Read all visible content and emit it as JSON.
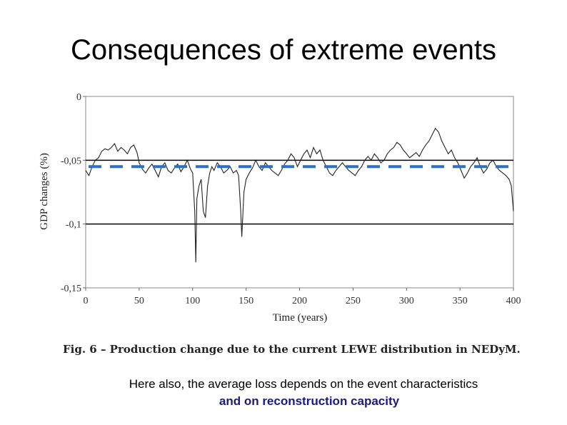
{
  "title": "Consequences of extreme events",
  "caption": "Fig. 6 – Production change due to the current LEWE distribution in NEDyM.",
  "note_line1": "Here also, the average loss depends on the event characteristics",
  "note_line2": "and on reconstruction capacity",
  "colors": {
    "note_line2": "#1a1a80",
    "dashed_mean": "#2c6fc7",
    "series": "#222222"
  },
  "chart_data": {
    "type": "line",
    "xlabel": "Time (years)",
    "ylabel": "GDP changes (%)",
    "xlim": [
      0,
      400
    ],
    "ylim": [
      -0.15,
      0
    ],
    "xticks": [
      0,
      50,
      100,
      150,
      200,
      250,
      300,
      350,
      400
    ],
    "xtick_labels": [
      "0",
      "50",
      "100",
      "150",
      "200",
      "250",
      "300",
      "350",
      "400"
    ],
    "yticks": [
      0,
      -0.05,
      -0.1,
      -0.15
    ],
    "ytick_labels": [
      "0",
      "-0,05",
      "-0,1",
      "-0,15"
    ],
    "reference_lines": [
      -0.05,
      -0.1
    ],
    "mean_line": -0.055,
    "series": [
      {
        "name": "GDP changes",
        "x": [
          0,
          3,
          6,
          9,
          12,
          15,
          18,
          21,
          24,
          27,
          30,
          33,
          36,
          39,
          42,
          45,
          48,
          50,
          53,
          56,
          59,
          62,
          65,
          68,
          71,
          74,
          77,
          80,
          83,
          86,
          89,
          92,
          95,
          98,
          100,
          102,
          103,
          104,
          106,
          108,
          110,
          112,
          114,
          116,
          118,
          120,
          123,
          126,
          129,
          132,
          135,
          138,
          141,
          143,
          145,
          146,
          148,
          150,
          153,
          156,
          159,
          162,
          165,
          168,
          171,
          174,
          177,
          180,
          183,
          186,
          189,
          192,
          195,
          198,
          201,
          204,
          207,
          210,
          213,
          216,
          219,
          222,
          225,
          228,
          231,
          234,
          237,
          240,
          243,
          246,
          249,
          252,
          255,
          258,
          261,
          264,
          267,
          270,
          273,
          276,
          279,
          282,
          285,
          288,
          291,
          294,
          297,
          300,
          303,
          306,
          309,
          312,
          315,
          318,
          321,
          324,
          327,
          330,
          333,
          336,
          339,
          342,
          345,
          348,
          351,
          354,
          357,
          360,
          363,
          366,
          369,
          372,
          375,
          378,
          381,
          384,
          387,
          390,
          393,
          396,
          398,
          400
        ],
        "y": [
          -0.058,
          -0.062,
          -0.055,
          -0.05,
          -0.048,
          -0.043,
          -0.041,
          -0.042,
          -0.04,
          -0.037,
          -0.043,
          -0.04,
          -0.042,
          -0.045,
          -0.04,
          -0.038,
          -0.044,
          -0.052,
          -0.057,
          -0.06,
          -0.056,
          -0.053,
          -0.058,
          -0.063,
          -0.055,
          -0.052,
          -0.058,
          -0.06,
          -0.056,
          -0.053,
          -0.059,
          -0.055,
          -0.05,
          -0.057,
          -0.06,
          -0.09,
          -0.13,
          -0.08,
          -0.07,
          -0.065,
          -0.09,
          -0.095,
          -0.07,
          -0.06,
          -0.055,
          -0.058,
          -0.052,
          -0.055,
          -0.06,
          -0.058,
          -0.055,
          -0.06,
          -0.058,
          -0.062,
          -0.09,
          -0.11,
          -0.075,
          -0.065,
          -0.06,
          -0.056,
          -0.05,
          -0.055,
          -0.058,
          -0.052,
          -0.055,
          -0.058,
          -0.06,
          -0.062,
          -0.058,
          -0.053,
          -0.05,
          -0.045,
          -0.048,
          -0.055,
          -0.05,
          -0.045,
          -0.042,
          -0.048,
          -0.04,
          -0.045,
          -0.042,
          -0.05,
          -0.055,
          -0.06,
          -0.062,
          -0.058,
          -0.055,
          -0.052,
          -0.055,
          -0.058,
          -0.06,
          -0.062,
          -0.058,
          -0.055,
          -0.05,
          -0.047,
          -0.05,
          -0.045,
          -0.048,
          -0.052,
          -0.05,
          -0.045,
          -0.042,
          -0.04,
          -0.036,
          -0.038,
          -0.042,
          -0.045,
          -0.048,
          -0.046,
          -0.044,
          -0.047,
          -0.042,
          -0.038,
          -0.035,
          -0.03,
          -0.025,
          -0.028,
          -0.035,
          -0.04,
          -0.045,
          -0.042,
          -0.048,
          -0.052,
          -0.058,
          -0.064,
          -0.06,
          -0.055,
          -0.052,
          -0.048,
          -0.055,
          -0.06,
          -0.057,
          -0.052,
          -0.05,
          -0.055,
          -0.058,
          -0.06,
          -0.062,
          -0.065,
          -0.07,
          -0.09
        ]
      }
    ]
  }
}
